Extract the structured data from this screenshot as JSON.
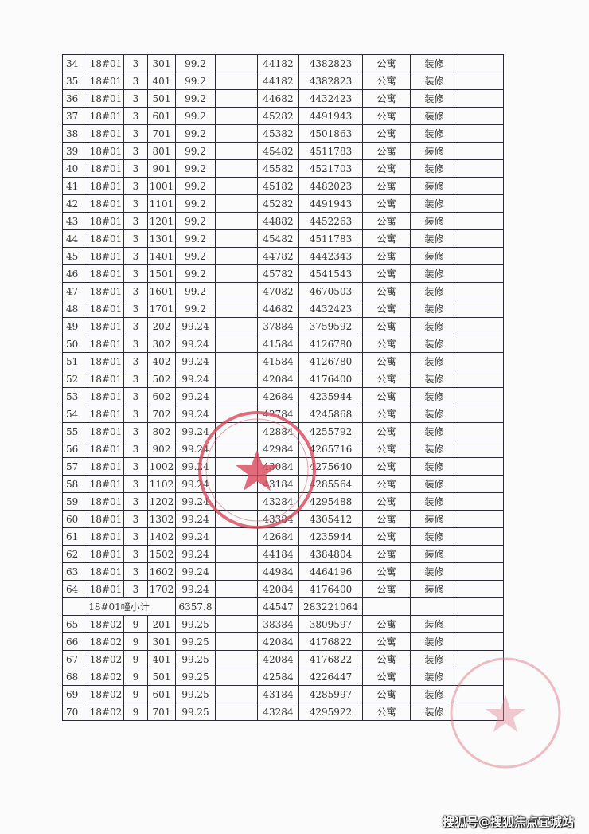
{
  "table": {
    "rows": [
      [
        "34",
        "18#01",
        "3",
        "301",
        "99.2",
        "",
        "44182",
        "4382823",
        "公寓",
        "装修",
        ""
      ],
      [
        "35",
        "18#01",
        "3",
        "401",
        "99.2",
        "",
        "44182",
        "4382823",
        "公寓",
        "装修",
        ""
      ],
      [
        "36",
        "18#01",
        "3",
        "501",
        "99.2",
        "",
        "44682",
        "4432423",
        "公寓",
        "装修",
        ""
      ],
      [
        "37",
        "18#01",
        "3",
        "601",
        "99.2",
        "",
        "45282",
        "4491943",
        "公寓",
        "装修",
        ""
      ],
      [
        "38",
        "18#01",
        "3",
        "701",
        "99.2",
        "",
        "45382",
        "4501863",
        "公寓",
        "装修",
        ""
      ],
      [
        "39",
        "18#01",
        "3",
        "801",
        "99.2",
        "",
        "45482",
        "4511783",
        "公寓",
        "装修",
        ""
      ],
      [
        "40",
        "18#01",
        "3",
        "901",
        "99.2",
        "",
        "45582",
        "4521703",
        "公寓",
        "装修",
        ""
      ],
      [
        "41",
        "18#01",
        "3",
        "1001",
        "99.2",
        "",
        "45182",
        "4482023",
        "公寓",
        "装修",
        ""
      ],
      [
        "42",
        "18#01",
        "3",
        "1101",
        "99.2",
        "",
        "45282",
        "4491943",
        "公寓",
        "装修",
        ""
      ],
      [
        "43",
        "18#01",
        "3",
        "1201",
        "99.2",
        "",
        "44882",
        "4452263",
        "公寓",
        "装修",
        ""
      ],
      [
        "44",
        "18#01",
        "3",
        "1301",
        "99.2",
        "",
        "45482",
        "4511783",
        "公寓",
        "装修",
        ""
      ],
      [
        "45",
        "18#01",
        "3",
        "1401",
        "99.2",
        "",
        "44782",
        "4442343",
        "公寓",
        "装修",
        ""
      ],
      [
        "46",
        "18#01",
        "3",
        "1501",
        "99.2",
        "",
        "45782",
        "4541543",
        "公寓",
        "装修",
        ""
      ],
      [
        "47",
        "18#01",
        "3",
        "1601",
        "99.2",
        "",
        "47082",
        "4670503",
        "公寓",
        "装修",
        ""
      ],
      [
        "48",
        "18#01",
        "3",
        "1701",
        "99.2",
        "",
        "44682",
        "4432423",
        "公寓",
        "装修",
        ""
      ],
      [
        "49",
        "18#01",
        "3",
        "202",
        "99.24",
        "",
        "37884",
        "3759592",
        "公寓",
        "装修",
        ""
      ],
      [
        "50",
        "18#01",
        "3",
        "302",
        "99.24",
        "",
        "41584",
        "4126780",
        "公寓",
        "装修",
        ""
      ],
      [
        "51",
        "18#01",
        "3",
        "402",
        "99.24",
        "",
        "41584",
        "4126780",
        "公寓",
        "装修",
        ""
      ],
      [
        "52",
        "18#01",
        "3",
        "502",
        "99.24",
        "",
        "42084",
        "4176400",
        "公寓",
        "装修",
        ""
      ],
      [
        "53",
        "18#01",
        "3",
        "602",
        "99.24",
        "",
        "42684",
        "4235944",
        "公寓",
        "装修",
        ""
      ],
      [
        "54",
        "18#01",
        "3",
        "702",
        "99.24",
        "",
        "42784",
        "4245868",
        "公寓",
        "装修",
        ""
      ],
      [
        "55",
        "18#01",
        "3",
        "802",
        "99.24",
        "",
        "42884",
        "4255792",
        "公寓",
        "装修",
        ""
      ],
      [
        "56",
        "18#01",
        "3",
        "902",
        "99.24",
        "",
        "42984",
        "4265716",
        "公寓",
        "装修",
        ""
      ],
      [
        "57",
        "18#01",
        "3",
        "1002",
        "99.24",
        "",
        "43084",
        "4275640",
        "公寓",
        "装修",
        ""
      ],
      [
        "58",
        "18#01",
        "3",
        "1102",
        "99.24",
        "",
        "43184",
        "4285564",
        "公寓",
        "装修",
        ""
      ],
      [
        "59",
        "18#01",
        "3",
        "1202",
        "99.24",
        "",
        "43284",
        "4295488",
        "公寓",
        "装修",
        ""
      ],
      [
        "60",
        "18#01",
        "3",
        "1302",
        "99.24",
        "",
        "43384",
        "4305412",
        "公寓",
        "装修",
        ""
      ],
      [
        "61",
        "18#01",
        "3",
        "1402",
        "99.24",
        "",
        "42684",
        "4235944",
        "公寓",
        "装修",
        ""
      ],
      [
        "62",
        "18#01",
        "3",
        "1502",
        "99.24",
        "",
        "44184",
        "4384804",
        "公寓",
        "装修",
        ""
      ],
      [
        "63",
        "18#01",
        "3",
        "1602",
        "99.24",
        "",
        "44984",
        "4464196",
        "公寓",
        "装修",
        ""
      ],
      [
        "64",
        "18#01",
        "3",
        "1702",
        "99.24",
        "",
        "42084",
        "4176400",
        "公寓",
        "装修",
        ""
      ]
    ],
    "subtotal": {
      "label": "18#01幢小计",
      "area": "6357.8",
      "unit_price": "44547",
      "total": "283221064"
    },
    "rows2": [
      [
        "65",
        "18#02",
        "9",
        "201",
        "99.25",
        "",
        "38384",
        "3809597",
        "公寓",
        "装修",
        ""
      ],
      [
        "66",
        "18#02",
        "9",
        "301",
        "99.25",
        "",
        "42084",
        "4176822",
        "公寓",
        "装修",
        ""
      ],
      [
        "67",
        "18#02",
        "9",
        "401",
        "99.25",
        "",
        "42084",
        "4176822",
        "公寓",
        "装修",
        ""
      ],
      [
        "68",
        "18#02",
        "9",
        "501",
        "99.25",
        "",
        "42584",
        "4226447",
        "公寓",
        "装修",
        ""
      ],
      [
        "69",
        "18#02",
        "9",
        "601",
        "99.25",
        "",
        "43184",
        "4285997",
        "公寓",
        "装修",
        ""
      ],
      [
        "70",
        "18#02",
        "9",
        "701",
        "99.25",
        "",
        "43284",
        "4295922",
        "公寓",
        "装修",
        ""
      ]
    ]
  },
  "stamp_color": "#d9485a",
  "watermark": "搜狐号@搜狐焦点宜城站"
}
